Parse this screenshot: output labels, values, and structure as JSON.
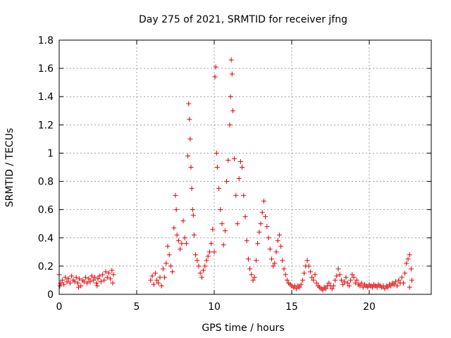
{
  "chart_data": {
    "type": "scatter",
    "title": "Day 275 of 2021, SRMTID for receiver jfng",
    "xlabel": "GPS time / hours",
    "ylabel": "SRMTID / TECUs",
    "xlim": [
      0,
      24
    ],
    "ylim": [
      0,
      1.8
    ],
    "xticks": [
      0,
      5,
      10,
      15,
      20
    ],
    "xtick_labels": [
      "0",
      "5",
      "10",
      "15",
      "20"
    ],
    "yticks": [
      0,
      0.2,
      0.4,
      0.6,
      0.8,
      1.0,
      1.2,
      1.4,
      1.6,
      1.8
    ],
    "ytick_labels": [
      "0",
      "0.2",
      "0.4",
      "0.6",
      "0.8",
      "1",
      "1.2",
      "1.4",
      "1.6",
      "1.8"
    ],
    "grid": true,
    "marker": "plus",
    "color": "#e00000",
    "series": [
      {
        "name": "SRMTID",
        "points": [
          [
            0.0,
            0.14
          ],
          [
            0.1,
            0.08
          ],
          [
            0.2,
            0.1
          ],
          [
            0.3,
            0.07
          ],
          [
            0.4,
            0.12
          ],
          [
            0.5,
            0.09
          ],
          [
            0.6,
            0.11
          ],
          [
            0.7,
            0.08
          ],
          [
            0.8,
            0.13
          ],
          [
            0.9,
            0.1
          ],
          [
            1.0,
            0.09
          ],
          [
            1.1,
            0.12
          ],
          [
            1.2,
            0.08
          ],
          [
            1.3,
            0.11
          ],
          [
            1.4,
            0.06
          ],
          [
            1.5,
            0.1
          ],
          [
            1.6,
            0.09
          ],
          [
            1.7,
            0.12
          ],
          [
            1.8,
            0.08
          ],
          [
            1.9,
            0.11
          ],
          [
            2.0,
            0.09
          ],
          [
            2.1,
            0.13
          ],
          [
            2.2,
            0.1
          ],
          [
            2.3,
            0.12
          ],
          [
            2.4,
            0.08
          ],
          [
            2.5,
            0.11
          ],
          [
            2.6,
            0.13
          ],
          [
            2.7,
            0.09
          ],
          [
            2.8,
            0.14
          ],
          [
            2.9,
            0.1
          ],
          [
            3.0,
            0.16
          ],
          [
            3.1,
            0.12
          ],
          [
            3.2,
            0.15
          ],
          [
            3.3,
            0.11
          ],
          [
            3.4,
            0.17
          ],
          [
            3.5,
            0.14
          ],
          [
            0.05,
            0.06
          ],
          [
            1.25,
            0.05
          ],
          [
            2.45,
            0.06
          ],
          [
            3.45,
            0.08
          ],
          [
            5.9,
            0.1
          ],
          [
            6.0,
            0.13
          ],
          [
            6.1,
            0.07
          ],
          [
            6.2,
            0.15
          ],
          [
            6.3,
            0.1
          ],
          [
            6.4,
            0.08
          ],
          [
            6.5,
            0.12
          ],
          [
            6.6,
            0.06
          ],
          [
            6.7,
            0.18
          ],
          [
            6.8,
            0.12
          ],
          [
            6.9,
            0.22
          ],
          [
            7.0,
            0.34
          ],
          [
            7.1,
            0.28
          ],
          [
            7.2,
            0.2
          ],
          [
            7.3,
            0.16
          ],
          [
            7.4,
            0.47
          ],
          [
            7.5,
            0.7
          ],
          [
            7.55,
            0.6
          ],
          [
            7.6,
            0.42
          ],
          [
            7.7,
            0.38
          ],
          [
            7.8,
            0.32
          ],
          [
            7.9,
            0.36
          ],
          [
            8.0,
            0.52
          ],
          [
            8.1,
            0.4
          ],
          [
            8.2,
            0.36
          ],
          [
            8.3,
            0.98
          ],
          [
            8.35,
            1.35
          ],
          [
            8.4,
            1.24
          ],
          [
            8.45,
            1.1
          ],
          [
            8.5,
            0.9
          ],
          [
            8.55,
            0.75
          ],
          [
            8.6,
            0.6
          ],
          [
            8.65,
            0.56
          ],
          [
            8.7,
            0.42
          ],
          [
            8.8,
            0.28
          ],
          [
            8.9,
            0.24
          ],
          [
            9.0,
            0.2
          ],
          [
            9.1,
            0.15
          ],
          [
            9.2,
            0.12
          ],
          [
            9.3,
            0.17
          ],
          [
            9.4,
            0.2
          ],
          [
            9.5,
            0.24
          ],
          [
            9.6,
            0.27
          ],
          [
            9.7,
            0.3
          ],
          [
            9.8,
            0.36
          ],
          [
            9.9,
            0.46
          ],
          [
            10.0,
            0.3
          ],
          [
            10.05,
            1.54
          ],
          [
            10.1,
            1.61
          ],
          [
            10.15,
            1.0
          ],
          [
            10.2,
            0.9
          ],
          [
            10.3,
            0.75
          ],
          [
            10.4,
            0.6
          ],
          [
            10.5,
            0.5
          ],
          [
            10.6,
            0.35
          ],
          [
            10.7,
            0.45
          ],
          [
            10.8,
            0.8
          ],
          [
            10.9,
            0.95
          ],
          [
            11.0,
            1.2
          ],
          [
            11.05,
            1.4
          ],
          [
            11.1,
            1.66
          ],
          [
            11.15,
            1.56
          ],
          [
            11.2,
            1.3
          ],
          [
            11.3,
            0.96
          ],
          [
            11.4,
            0.7
          ],
          [
            11.5,
            0.5
          ],
          [
            11.6,
            0.82
          ],
          [
            11.7,
            0.94
          ],
          [
            11.8,
            0.9
          ],
          [
            11.9,
            0.7
          ],
          [
            12.0,
            0.55
          ],
          [
            12.1,
            0.38
          ],
          [
            12.2,
            0.25
          ],
          [
            12.3,
            0.18
          ],
          [
            12.4,
            0.14
          ],
          [
            12.5,
            0.1
          ],
          [
            12.6,
            0.12
          ],
          [
            12.7,
            0.24
          ],
          [
            12.8,
            0.36
          ],
          [
            12.9,
            0.44
          ],
          [
            13.0,
            0.5
          ],
          [
            13.1,
            0.58
          ],
          [
            13.2,
            0.66
          ],
          [
            13.3,
            0.55
          ],
          [
            13.4,
            0.48
          ],
          [
            13.5,
            0.4
          ],
          [
            13.6,
            0.32
          ],
          [
            13.7,
            0.25
          ],
          [
            13.8,
            0.2
          ],
          [
            13.9,
            0.22
          ],
          [
            14.0,
            0.3
          ],
          [
            14.1,
            0.38
          ],
          [
            14.2,
            0.42
          ],
          [
            14.3,
            0.34
          ],
          [
            14.4,
            0.24
          ],
          [
            14.5,
            0.18
          ],
          [
            14.6,
            0.14
          ],
          [
            14.7,
            0.1
          ],
          [
            14.8,
            0.08
          ],
          [
            14.9,
            0.07
          ],
          [
            15.0,
            0.06
          ],
          [
            15.1,
            0.05
          ],
          [
            15.2,
            0.06
          ],
          [
            15.3,
            0.04
          ],
          [
            15.4,
            0.06
          ],
          [
            15.5,
            0.05
          ],
          [
            15.6,
            0.07
          ],
          [
            15.7,
            0.1
          ],
          [
            15.8,
            0.15
          ],
          [
            15.9,
            0.2
          ],
          [
            16.0,
            0.24
          ],
          [
            16.1,
            0.2
          ],
          [
            16.2,
            0.16
          ],
          [
            16.3,
            0.12
          ],
          [
            16.4,
            0.1
          ],
          [
            16.5,
            0.14
          ],
          [
            16.6,
            0.08
          ],
          [
            16.7,
            0.06
          ],
          [
            16.8,
            0.05
          ],
          [
            16.9,
            0.04
          ],
          [
            17.0,
            0.03
          ],
          [
            17.1,
            0.05
          ],
          [
            17.2,
            0.04
          ],
          [
            17.3,
            0.06
          ],
          [
            17.4,
            0.08
          ],
          [
            17.5,
            0.06
          ],
          [
            17.6,
            0.04
          ],
          [
            17.7,
            0.06
          ],
          [
            17.8,
            0.1
          ],
          [
            17.9,
            0.13
          ],
          [
            18.0,
            0.18
          ],
          [
            18.1,
            0.14
          ],
          [
            18.2,
            0.1
          ],
          [
            18.3,
            0.07
          ],
          [
            18.4,
            0.09
          ],
          [
            18.5,
            0.12
          ],
          [
            18.6,
            0.08
          ],
          [
            18.7,
            0.06
          ],
          [
            18.8,
            0.1
          ],
          [
            18.9,
            0.14
          ],
          [
            19.0,
            0.12
          ],
          [
            19.1,
            0.08
          ],
          [
            19.2,
            0.1
          ],
          [
            19.3,
            0.07
          ],
          [
            19.4,
            0.06
          ],
          [
            19.5,
            0.08
          ],
          [
            19.6,
            0.05
          ],
          [
            19.7,
            0.07
          ],
          [
            19.8,
            0.06
          ],
          [
            19.9,
            0.05
          ],
          [
            20.0,
            0.07
          ],
          [
            20.1,
            0.06
          ],
          [
            20.2,
            0.05
          ],
          [
            20.3,
            0.07
          ],
          [
            20.4,
            0.06
          ],
          [
            20.5,
            0.05
          ],
          [
            20.6,
            0.07
          ],
          [
            20.7,
            0.06
          ],
          [
            20.8,
            0.05
          ],
          [
            20.9,
            0.06
          ],
          [
            21.0,
            0.04
          ],
          [
            21.1,
            0.06
          ],
          [
            21.2,
            0.05
          ],
          [
            21.3,
            0.07
          ],
          [
            21.4,
            0.06
          ],
          [
            21.5,
            0.08
          ],
          [
            21.6,
            0.07
          ],
          [
            21.7,
            0.09
          ],
          [
            21.8,
            0.06
          ],
          [
            21.9,
            0.1
          ],
          [
            22.0,
            0.08
          ],
          [
            22.1,
            0.12
          ],
          [
            22.2,
            0.08
          ],
          [
            22.3,
            0.15
          ],
          [
            22.4,
            0.22
          ],
          [
            22.5,
            0.25
          ],
          [
            22.6,
            0.28
          ],
          [
            22.7,
            0.18
          ],
          [
            22.75,
            0.1
          ],
          [
            22.6,
            0.05
          ]
        ]
      }
    ]
  }
}
